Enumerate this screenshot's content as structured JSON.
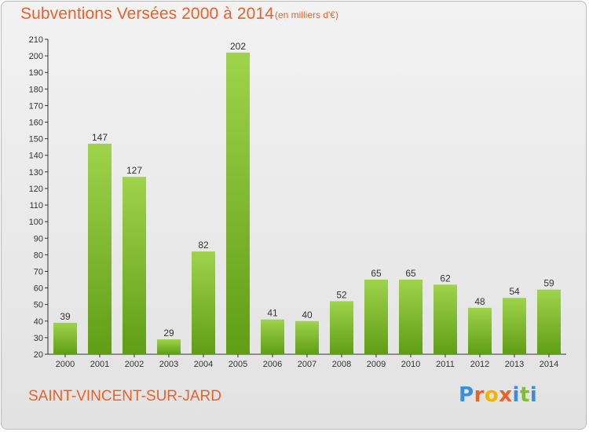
{
  "header": {
    "title": "Subventions Versées 2000 à 2014",
    "unit": "(en milliers d'€)"
  },
  "footer": {
    "commune": "SAINT-VINCENT-SUR-JARD",
    "logo": {
      "letters": [
        "P",
        "r",
        "o",
        "x",
        "i",
        "t",
        "i"
      ]
    }
  },
  "colors": {
    "accent": "#e8622a",
    "bar_top": "#9fd34c",
    "bar_bottom": "#5f9e16",
    "logo": [
      "#3a8fd6",
      "#e8622a",
      "#f2b400",
      "#e8622a",
      "#3a8fd6",
      "#7fbf2a",
      "#3a8fd6"
    ]
  },
  "chart_data": {
    "type": "bar",
    "categories": [
      "2000",
      "2001",
      "2002",
      "2003",
      "2004",
      "2005",
      "2006",
      "2007",
      "2008",
      "2009",
      "2010",
      "2011",
      "2012",
      "2013",
      "2014"
    ],
    "values": [
      39,
      147,
      127,
      29,
      82,
      202,
      41,
      40,
      52,
      65,
      65,
      62,
      48,
      54,
      59
    ],
    "ylim": [
      20,
      210
    ],
    "yticks": [
      20,
      30,
      40,
      50,
      60,
      70,
      80,
      90,
      100,
      110,
      120,
      130,
      140,
      150,
      160,
      170,
      180,
      190,
      200,
      210
    ],
    "grid": false,
    "legend": "none"
  }
}
